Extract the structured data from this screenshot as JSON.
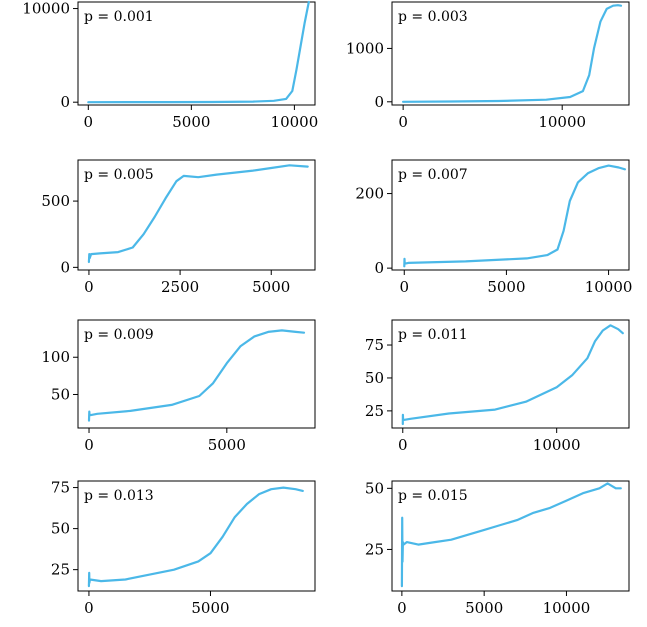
{
  "colors": {
    "series": "#4bb8e8",
    "axis": "#000000",
    "background": "#ffffff"
  },
  "chart_data": [
    {
      "type": "line",
      "label": "p = 0.001",
      "xlim": [
        -500,
        11000
      ],
      "ylim": [
        -300,
        10700
      ],
      "xticks": [
        0,
        5000,
        10000
      ],
      "xtick_labels": [
        "0",
        "5000",
        "10000"
      ],
      "yticks": [
        0,
        10000
      ],
      "ytick_labels": [
        "0",
        "10000"
      ],
      "x": [
        0,
        2000,
        4000,
        6000,
        8000,
        9000,
        9600,
        9900,
        10100,
        10300,
        10500,
        10700
      ],
      "y": [
        0,
        5,
        10,
        20,
        60,
        150,
        350,
        1200,
        3500,
        6000,
        8500,
        10700
      ]
    },
    {
      "type": "line",
      "label": "p = 0.003",
      "xlim": [
        -700,
        14200
      ],
      "ylim": [
        -60,
        1870
      ],
      "xticks": [
        0,
        10000
      ],
      "xtick_labels": [
        "0",
        "10000"
      ],
      "yticks": [
        0,
        1000
      ],
      "ytick_labels": [
        "0",
        "1000"
      ],
      "x": [
        0,
        3000,
        6000,
        9000,
        10500,
        11300,
        11700,
        12000,
        12400,
        12800,
        13200,
        13500,
        13700
      ],
      "y": [
        0,
        5,
        15,
        40,
        90,
        200,
        500,
        1000,
        1500,
        1740,
        1800,
        1810,
        1800
      ]
    },
    {
      "type": "line",
      "label": "p = 0.005",
      "xlim": [
        -300,
        6200
      ],
      "ylim": [
        -20,
        810
      ],
      "xticks": [
        0,
        2500,
        5000
      ],
      "xtick_labels": [
        "0",
        "2500",
        "5000"
      ],
      "yticks": [
        0,
        500
      ],
      "ytick_labels": [
        "0",
        "500"
      ],
      "x": [
        0,
        10,
        20,
        60,
        300,
        800,
        1200,
        1500,
        1800,
        2100,
        2400,
        2600,
        3000,
        3500,
        4000,
        4500,
        5000,
        5500,
        6000
      ],
      "y": [
        40,
        100,
        70,
        100,
        105,
        115,
        150,
        250,
        380,
        520,
        650,
        690,
        680,
        700,
        715,
        730,
        750,
        770,
        760
      ]
    },
    {
      "type": "line",
      "label": "p = 0.007",
      "xlim": [
        -600,
        11000
      ],
      "ylim": [
        -5,
        290
      ],
      "xticks": [
        0,
        5000,
        10000
      ],
      "xtick_labels": [
        "0",
        "5000",
        "10000"
      ],
      "yticks": [
        0,
        200
      ],
      "ytick_labels": [
        "0",
        "200"
      ],
      "x": [
        0,
        10,
        20,
        200,
        3000,
        6000,
        7000,
        7500,
        7800,
        8100,
        8500,
        9000,
        9500,
        10000,
        10500,
        10800
      ],
      "y": [
        5,
        25,
        12,
        14,
        18,
        26,
        35,
        50,
        100,
        180,
        230,
        255,
        268,
        275,
        270,
        265
      ]
    },
    {
      "type": "line",
      "label": "p = 0.009",
      "xlim": [
        -400,
        8200
      ],
      "ylim": [
        5,
        150
      ],
      "xticks": [
        0,
        5000
      ],
      "xtick_labels": [
        "0",
        "5000"
      ],
      "yticks": [
        50,
        100
      ],
      "ytick_labels": [
        "50",
        "100"
      ],
      "x": [
        0,
        10,
        20,
        300,
        1500,
        3000,
        4000,
        4500,
        5000,
        5500,
        6000,
        6500,
        7000,
        7500,
        7800
      ],
      "y": [
        15,
        27,
        22,
        24,
        28,
        36,
        48,
        65,
        92,
        115,
        128,
        134,
        136,
        134,
        133
      ]
    },
    {
      "type": "line",
      "label": "p = 0.011",
      "xlim": [
        -700,
        14700
      ],
      "ylim": [
        12,
        94
      ],
      "xticks": [
        0,
        10000
      ],
      "xtick_labels": [
        "0",
        "10000"
      ],
      "yticks": [
        25,
        50,
        75
      ],
      "ytick_labels": [
        "25",
        "50",
        "75"
      ],
      "x": [
        0,
        10,
        20,
        500,
        3000,
        6000,
        8000,
        10000,
        11000,
        12000,
        12500,
        13000,
        13500,
        14000,
        14300
      ],
      "y": [
        15,
        22,
        18,
        19,
        23,
        26,
        32,
        43,
        52,
        65,
        78,
        86,
        90,
        87,
        84
      ]
    },
    {
      "type": "line",
      "label": "p = 0.013",
      "xlim": [
        -450,
        9300
      ],
      "ylim": [
        12,
        79
      ],
      "xticks": [
        0,
        5000
      ],
      "xtick_labels": [
        "0",
        "5000"
      ],
      "yticks": [
        25,
        50,
        75
      ],
      "ytick_labels": [
        "25",
        "50",
        "75"
      ],
      "x": [
        0,
        10,
        20,
        40,
        500,
        1500,
        2500,
        3500,
        4500,
        5000,
        5500,
        6000,
        6500,
        7000,
        7500,
        8000,
        8500,
        8800
      ],
      "y": [
        15,
        23,
        17,
        19,
        18,
        19,
        22,
        25,
        30,
        35,
        45,
        57,
        65,
        71,
        74,
        75,
        74,
        73
      ]
    },
    {
      "type": "line",
      "label": "p = 0.015",
      "xlim": [
        -600,
        13800
      ],
      "ylim": [
        8,
        53
      ],
      "xticks": [
        0,
        5000,
        10000
      ],
      "xtick_labels": [
        "0",
        "5000",
        "10000"
      ],
      "yticks": [
        25,
        50
      ],
      "ytick_labels": [
        "25",
        "50"
      ],
      "x": [
        0,
        20,
        40,
        60,
        100,
        300,
        1000,
        2000,
        3000,
        4000,
        5000,
        6000,
        7000,
        8000,
        9000,
        10000,
        11000,
        12000,
        12500,
        13000,
        13300
      ],
      "y": [
        10,
        38,
        20,
        28,
        27,
        28,
        27,
        28,
        29,
        31,
        33,
        35,
        37,
        40,
        42,
        45,
        48,
        50,
        52,
        50,
        50
      ]
    }
  ]
}
